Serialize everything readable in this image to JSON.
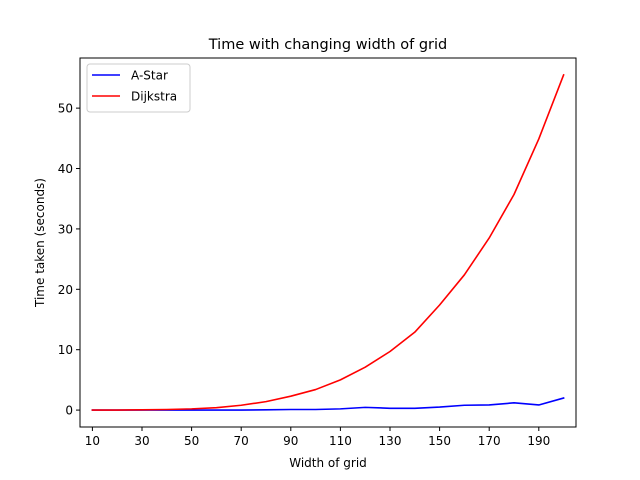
{
  "chart_data": {
    "type": "line",
    "title": "Time with changing width of grid",
    "xlabel": "Width of grid",
    "ylabel": "Time taken (seconds)",
    "xlim": [
      5,
      205
    ],
    "ylim": [
      -2.8,
      58.3
    ],
    "xticks": [
      10,
      30,
      50,
      70,
      90,
      110,
      130,
      150,
      170,
      190
    ],
    "yticks": [
      0,
      10,
      20,
      30,
      40,
      50
    ],
    "grid": false,
    "legend_position": "top-left",
    "x": [
      10,
      20,
      30,
      40,
      50,
      60,
      70,
      80,
      90,
      100,
      110,
      120,
      130,
      140,
      150,
      160,
      170,
      180,
      190,
      200
    ],
    "series": [
      {
        "name": "A-Star",
        "color": "#0000ff",
        "values": [
          0.0,
          0.0,
          0.0,
          0.0,
          0.0,
          0.0,
          0.0,
          0.05,
          0.1,
          0.1,
          0.2,
          0.45,
          0.3,
          0.3,
          0.5,
          0.8,
          0.85,
          1.2,
          0.85,
          2.0
        ]
      },
      {
        "name": "Dijkstra",
        "color": "#ff0000",
        "values": [
          0.0,
          0.0,
          0.05,
          0.1,
          0.2,
          0.4,
          0.8,
          1.4,
          2.3,
          3.4,
          5.0,
          7.1,
          9.7,
          12.9,
          17.4,
          22.4,
          28.5,
          35.7,
          44.9,
          55.5
        ]
      }
    ]
  }
}
